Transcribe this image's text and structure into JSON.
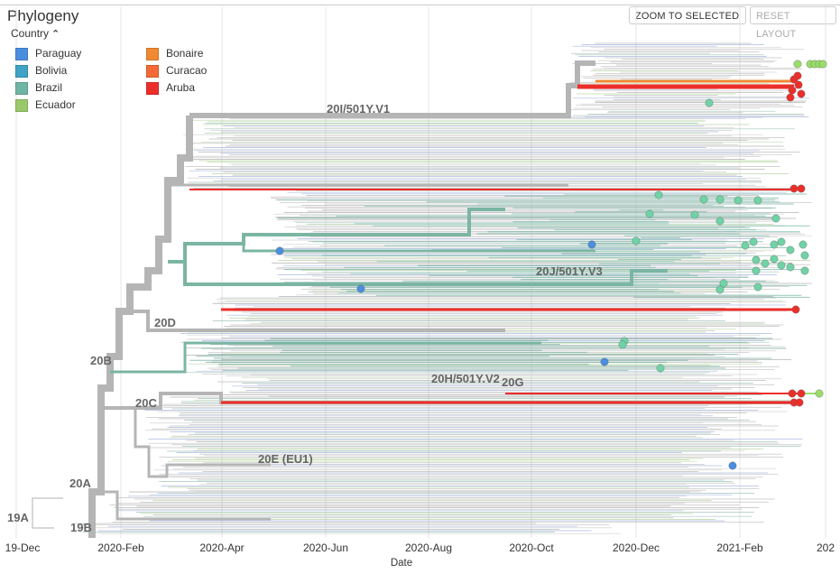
{
  "header": {
    "title": "Phylogeny",
    "zoom_button": "ZOOM TO SELECTED",
    "reset_button": "RESET LAYOUT"
  },
  "legend": {
    "heading": "Country",
    "items": [
      {
        "label": "Paraguay",
        "color": "#4a8ee0"
      },
      {
        "label": "Bolivia",
        "color": "#3fa2c6"
      },
      {
        "label": "Brazil",
        "color": "#6fb5a5"
      },
      {
        "label": "Ecuador",
        "color": "#99c96a"
      },
      {
        "label": "Bonaire",
        "color": "#f08a32"
      },
      {
        "label": "Curacao",
        "color": "#f46a36"
      },
      {
        "label": "Aruba",
        "color": "#ec2e2a"
      }
    ]
  },
  "chart_data": {
    "type": "tree",
    "x_axis_label": "Date",
    "x_ticks": [
      "19-Dec",
      "2020-Feb",
      "2020-Apr",
      "2020-Jun",
      "2020-Aug",
      "2020-Oct",
      "2020-Dec",
      "2021-Feb",
      "202"
    ],
    "clade_labels": [
      "20I/501Y.V1",
      "20J/501Y.V3",
      "20D",
      "20B",
      "20H/501Y.V2",
      "20G",
      "20C",
      "20E (EU1)",
      "20A",
      "19A",
      "19B"
    ],
    "grid": true,
    "colors": {
      "trunk": "#b5b5b5",
      "brazil_clade": "#7bb5a3",
      "branch_grey": "#a9a9a9",
      "aruba": "#ec2e2a",
      "paraguay": "#4a8ee0",
      "brazil_tip": "#6fd3a6",
      "ecuador_tip": "#99de6a"
    }
  }
}
